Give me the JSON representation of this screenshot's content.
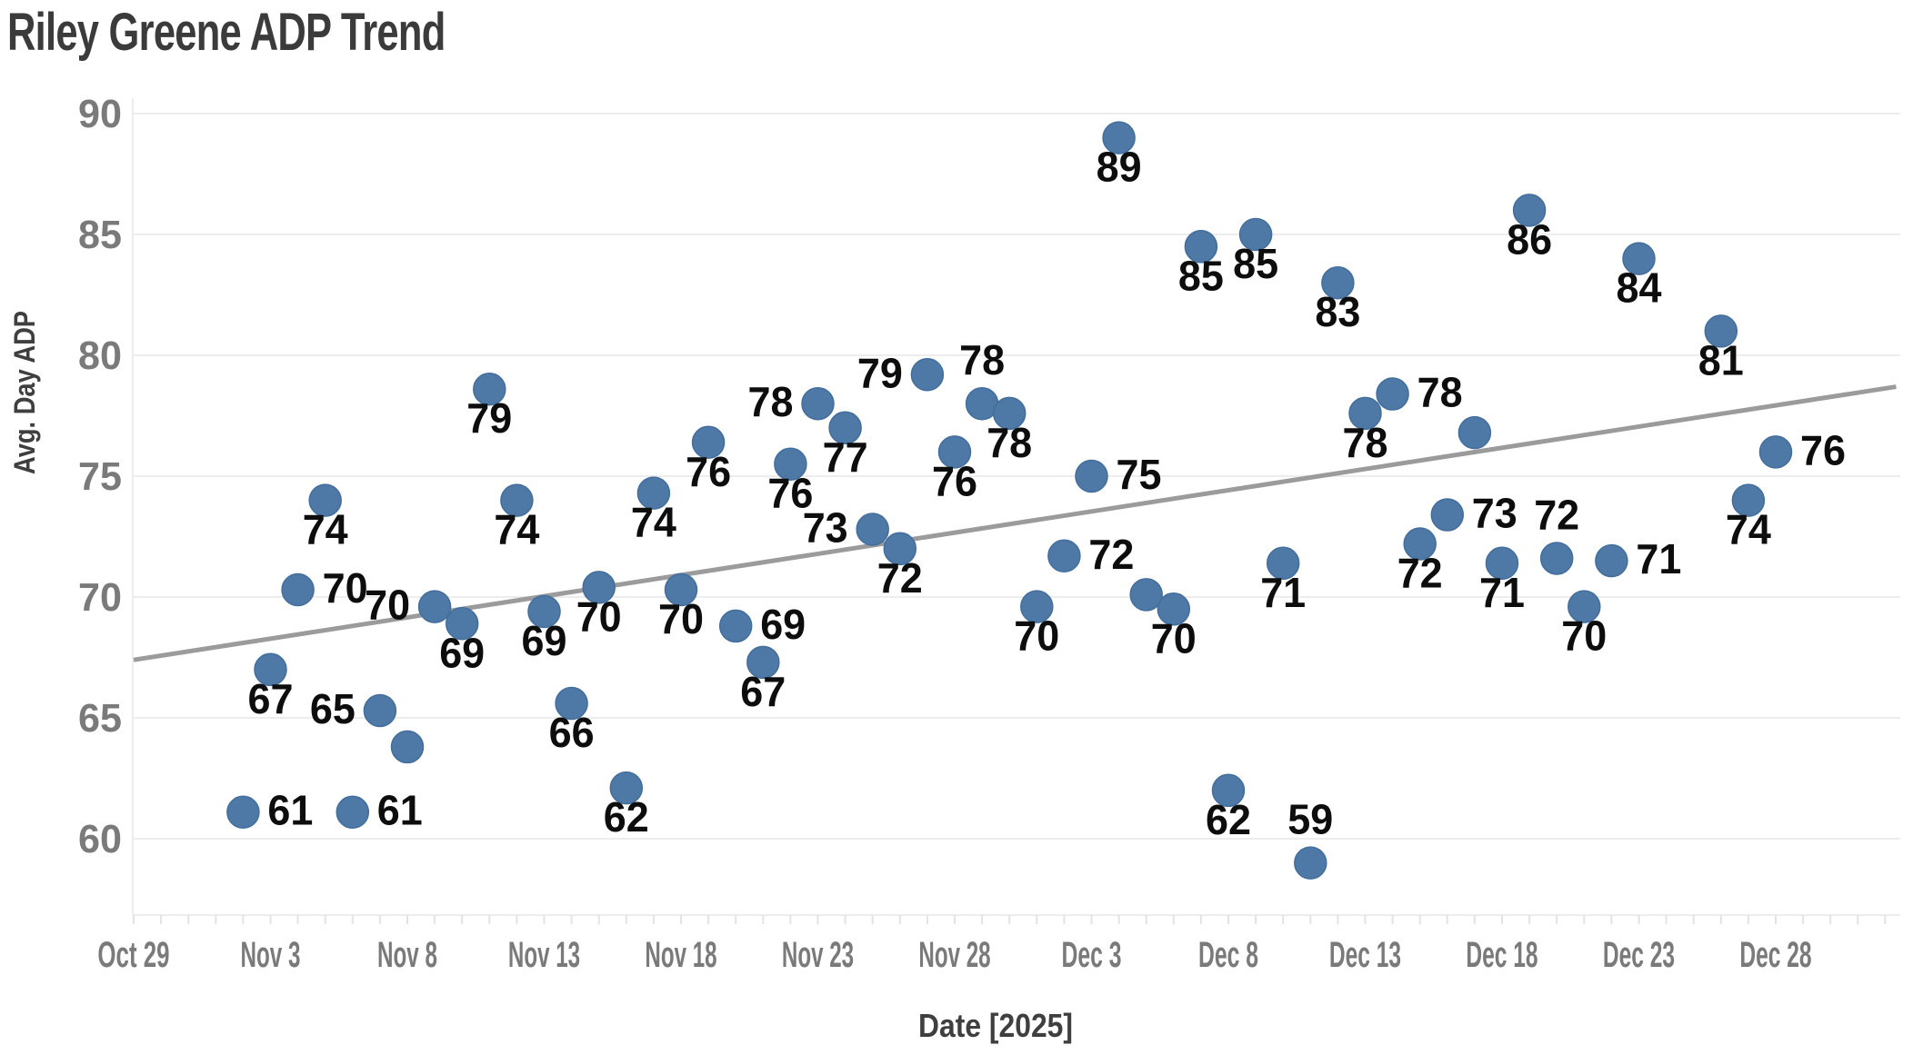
{
  "page": {
    "title": "Riley Greene ADP Trend"
  },
  "chart_data": {
    "type": "scatter",
    "title": "Riley Greene ADP Trend",
    "xlabel": "Date [2025]",
    "ylabel": "Avg. Day ADP",
    "x_tick_labels": [
      "Oct 29",
      "Nov 3",
      "Nov 8",
      "Nov 13",
      "Nov 18",
      "Nov 23",
      "Nov 28",
      "Dec 3",
      "Dec 8",
      "Dec 13",
      "Dec 18",
      "Dec 23",
      "Dec 28"
    ],
    "x_tick_day_offsets": [
      0,
      5,
      10,
      15,
      20,
      25,
      30,
      35,
      40,
      45,
      50,
      55,
      60
    ],
    "y_tick_labels": [
      "90",
      "85",
      "80",
      "75",
      "70",
      "65",
      "60"
    ],
    "y_ticks": [
      90,
      85,
      80,
      75,
      70,
      65,
      60
    ],
    "ylim": [
      56.8,
      90.6
    ],
    "grid": true,
    "legend": false,
    "points": [
      {
        "date": "Nov 2",
        "value": 61.1,
        "label": "61",
        "label_pos": "right"
      },
      {
        "date": "Nov 3",
        "value": 67.0,
        "label": "67",
        "label_pos": "below"
      },
      {
        "date": "Nov 4",
        "value": 70.3,
        "label": "70",
        "label_pos": "right"
      },
      {
        "date": "Nov 5",
        "value": 74.0,
        "label": "74",
        "label_pos": "below"
      },
      {
        "date": "Nov 6",
        "value": 61.1,
        "label": "61",
        "label_pos": "right"
      },
      {
        "date": "Nov 7",
        "value": 65.3,
        "label": "65",
        "label_pos": "left"
      },
      {
        "date": "Nov 8",
        "value": 63.8,
        "label": "",
        "label_pos": "none"
      },
      {
        "date": "Nov 9",
        "value": 69.6,
        "label": "70",
        "label_pos": "left"
      },
      {
        "date": "Nov 10",
        "value": 68.9,
        "label": "69",
        "label_pos": "below"
      },
      {
        "date": "Nov 11",
        "value": 78.6,
        "label": "79",
        "label_pos": "below"
      },
      {
        "date": "Nov 12",
        "value": 74.0,
        "label": "74",
        "label_pos": "below"
      },
      {
        "date": "Nov 13",
        "value": 69.4,
        "label": "69",
        "label_pos": "below"
      },
      {
        "date": "Nov 14",
        "value": 65.6,
        "label": "66",
        "label_pos": "below"
      },
      {
        "date": "Nov 15",
        "value": 70.4,
        "label": "70",
        "label_pos": "below"
      },
      {
        "date": "Nov 16",
        "value": 62.1,
        "label": "62",
        "label_pos": "below"
      },
      {
        "date": "Nov 17",
        "value": 74.3,
        "label": "74",
        "label_pos": "below"
      },
      {
        "date": "Nov 18",
        "value": 70.3,
        "label": "70",
        "label_pos": "below"
      },
      {
        "date": "Nov 19",
        "value": 76.4,
        "label": "76",
        "label_pos": "below"
      },
      {
        "date": "Nov 20",
        "value": 68.8,
        "label": "69",
        "label_pos": "right"
      },
      {
        "date": "Nov 21",
        "value": 67.3,
        "label": "67",
        "label_pos": "below"
      },
      {
        "date": "Nov 22",
        "value": 75.5,
        "label": "76",
        "label_pos": "below"
      },
      {
        "date": "Nov 23",
        "value": 78.0,
        "label": "78",
        "label_pos": "left"
      },
      {
        "date": "Nov 24",
        "value": 77.0,
        "label": "77",
        "label_pos": "below"
      },
      {
        "date": "Nov 25",
        "value": 72.8,
        "label": "73",
        "label_pos": "left"
      },
      {
        "date": "Nov 26",
        "value": 72.0,
        "label": "72",
        "label_pos": "below"
      },
      {
        "date": "Nov 27",
        "value": 79.2,
        "label": "79",
        "label_pos": "left"
      },
      {
        "date": "Nov 28",
        "value": 76.0,
        "label": "76",
        "label_pos": "below"
      },
      {
        "date": "Nov 29",
        "value": 78.0,
        "label": "78",
        "label_pos": "above"
      },
      {
        "date": "Nov 30",
        "value": 77.6,
        "label": "78",
        "label_pos": "below"
      },
      {
        "date": "Dec 1",
        "value": 69.6,
        "label": "70",
        "label_pos": "below"
      },
      {
        "date": "Dec 2",
        "value": 71.7,
        "label": "72",
        "label_pos": "right"
      },
      {
        "date": "Dec 3",
        "value": 75.0,
        "label": "75",
        "label_pos": "right"
      },
      {
        "date": "Dec 4",
        "value": 89.0,
        "label": "89",
        "label_pos": "below"
      },
      {
        "date": "Dec 5",
        "value": 70.1,
        "label": "",
        "label_pos": "none"
      },
      {
        "date": "Dec 6",
        "value": 69.5,
        "label": "70",
        "label_pos": "below"
      },
      {
        "date": "Dec 7",
        "value": 84.5,
        "label": "85",
        "label_pos": "below"
      },
      {
        "date": "Dec 8",
        "value": 62.0,
        "label": "62",
        "label_pos": "below"
      },
      {
        "date": "Dec 9",
        "value": 85.0,
        "label": "85",
        "label_pos": "below"
      },
      {
        "date": "Dec 10",
        "value": 71.4,
        "label": "71",
        "label_pos": "below"
      },
      {
        "date": "Dec 11",
        "value": 59.0,
        "label": "59",
        "label_pos": "above"
      },
      {
        "date": "Dec 12",
        "value": 83.0,
        "label": "83",
        "label_pos": "below"
      },
      {
        "date": "Dec 13",
        "value": 77.6,
        "label": "78",
        "label_pos": "below"
      },
      {
        "date": "Dec 14",
        "value": 78.4,
        "label": "78",
        "label_pos": "right"
      },
      {
        "date": "Dec 15",
        "value": 72.2,
        "label": "72",
        "label_pos": "below"
      },
      {
        "date": "Dec 16",
        "value": 73.4,
        "label": "73",
        "label_pos": "right"
      },
      {
        "date": "Dec 17",
        "value": 76.8,
        "label": "",
        "label_pos": "none"
      },
      {
        "date": "Dec 18",
        "value": 71.4,
        "label": "71",
        "label_pos": "below"
      },
      {
        "date": "Dec 19",
        "value": 86.0,
        "label": "86",
        "label_pos": "below"
      },
      {
        "date": "Dec 20",
        "value": 71.6,
        "label": "72",
        "label_pos": "above"
      },
      {
        "date": "Dec 21",
        "value": 69.6,
        "label": "70",
        "label_pos": "below"
      },
      {
        "date": "Dec 22",
        "value": 71.5,
        "label": "71",
        "label_pos": "right"
      },
      {
        "date": "Dec 23",
        "value": 84.0,
        "label": "84",
        "label_pos": "below"
      },
      {
        "date": "Dec 26",
        "value": 81.0,
        "label": "81",
        "label_pos": "below"
      },
      {
        "date": "Dec 27",
        "value": 74.0,
        "label": "74",
        "label_pos": "below"
      },
      {
        "date": "Dec 28",
        "value": 76.0,
        "label": "76",
        "label_pos": "right"
      }
    ],
    "trend_line": {
      "start_day_offset": 0,
      "start_value": 67.4,
      "end_day_offset": 64.4,
      "end_value": 78.7
    },
    "colors": {
      "marker": "#4E79A7",
      "marker_edge": "#436e9c",
      "trend": "#9b9b9b",
      "grid": "#ededed",
      "axis_line": "#ededed",
      "tick_mark": "#e3e3e3",
      "tick_label": "#7a7a7a",
      "data_label": "#0d0d0d",
      "title": "#3b3b3b",
      "axis_title": "#3f3f3f"
    }
  }
}
